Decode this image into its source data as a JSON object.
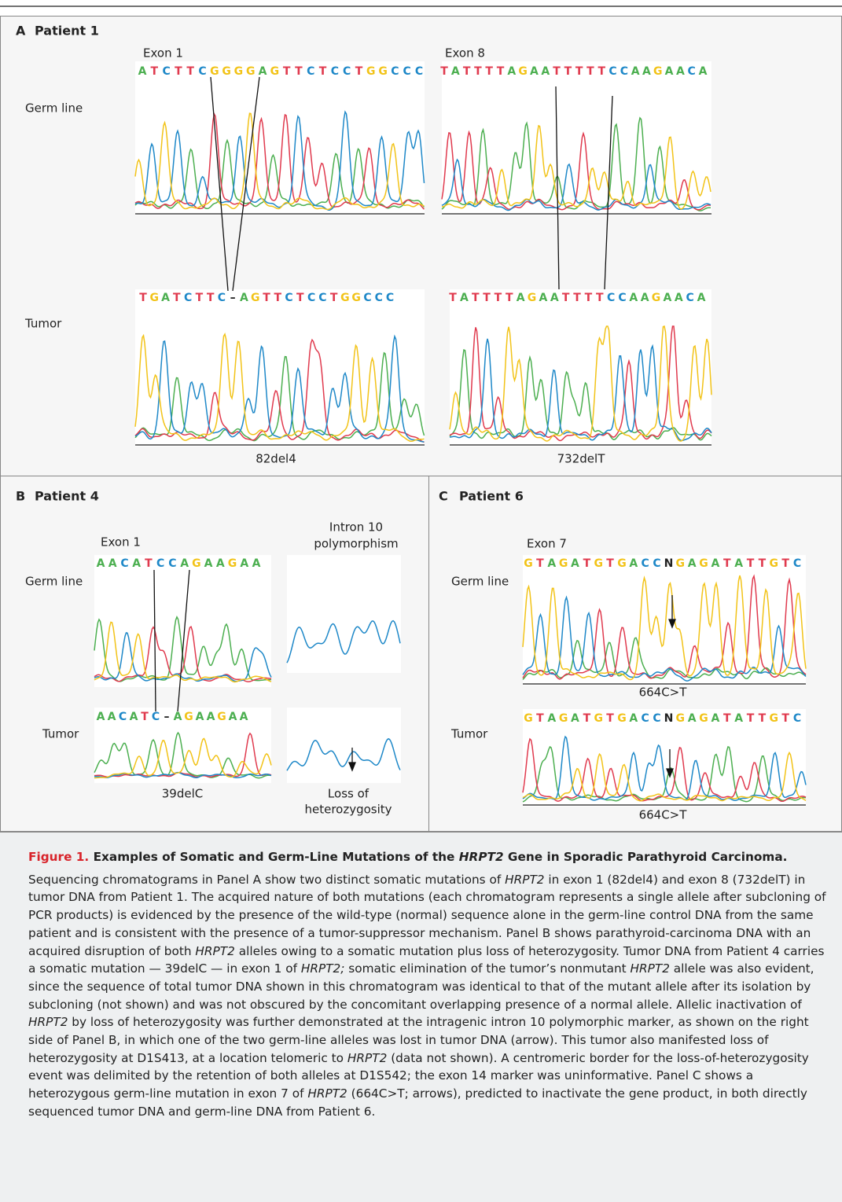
{
  "panels": [
    {
      "letter": "A",
      "title": "Patient 1",
      "row_labels": [
        "Germ line",
        "Tumor"
      ],
      "exons": [
        "Exon 1",
        "Exon 8"
      ],
      "sequences": [
        "ATCTTCGGGGAGTTCTCCTGGCCC",
        "TATTTTAGAATTTTTCCAAGAACA",
        "TGATCTTC–AGTTCTCCTGGCCC",
        "TATTTTAGAATTTTCCAAGAACA"
      ],
      "mutations": [
        "82del4",
        "732delT"
      ]
    },
    {
      "letter": "B",
      "title": "Patient 4",
      "row_labels": [
        "Germ line",
        "Tumor"
      ],
      "exons": [
        "Exon 1"
      ],
      "marker": [
        "Intron 10",
        "polymorphism"
      ],
      "sequences": [
        "AACATCCAGAAGAA",
        "AACATC–AGAAGAA"
      ],
      "mutations": [
        "39delC"
      ],
      "marker_result": [
        "Loss of",
        "heterozygosity"
      ]
    },
    {
      "letter": "C",
      "title": "Patient 6",
      "row_labels": [
        "Germ line",
        "Tumor"
      ],
      "exons": [
        "Exon 7"
      ],
      "sequences": [
        "GTAGATGTGACCNGAGATATTGTC",
        "GTAGATGTGACCNGAGATATTGTC"
      ],
      "mutations": [
        "664C>T",
        "664C>T"
      ]
    }
  ],
  "caption": {
    "label": "Figure 1.",
    "title": [
      {
        "text": "Examples of Somatic and Germ-Line Mutations of the "
      },
      {
        "text": "HRPT2",
        "italic": true
      },
      {
        "text": " Gene in Sporadic Parathyroid Carcinoma."
      }
    ],
    "body": [
      {
        "text": "Sequencing chromatograms in Panel A show two distinct somatic mutations of "
      },
      {
        "text": "HRPT2",
        "italic": true
      },
      {
        "text": " in exon 1 (82del4) and exon 8 (732delT) in tumor DNA from Patient 1. The acquired nature of both mutations (each chromatogram represents a single allele after subcloning of PCR products) is evidenced by the presence of the wild-type (normal) sequence alone in the germ-line control DNA from the same patient and is consistent with the presence of a tumor-suppressor mechanism. Panel B shows parathyroid-carcinoma DNA with an acquired disruption of both "
      },
      {
        "text": "HRPT2",
        "italic": true
      },
      {
        "text": " alleles owing to a somatic mutation plus loss of heterozygosity. Tumor DNA from Patient 4 carries a somatic mutation — 39delC — in exon 1 of "
      },
      {
        "text": "HRPT2;",
        "italic": true
      },
      {
        "text": " somatic elimination of the tumor’s nonmutant "
      },
      {
        "text": "HRPT2",
        "italic": true
      },
      {
        "text": " allele was also evident, since the sequence of total tumor DNA shown in this chromatogram was identical to that of the mutant allele after its isolation by subcloning (not shown) and was not obscured by the concomitant overlapping presence of a normal allele. Allelic inactivation of "
      },
      {
        "text": "HRPT2",
        "italic": true
      },
      {
        "text": " by loss of heterozygosity was further demonstrated at the intragenic intron 10 polymorphic marker, as shown on the right side of Panel B, in which one of the two germ-line alleles was lost in tumor DNA (arrow). This tumor also manifested loss of heterozygosity at D1S413, at a location telomeric to "
      },
      {
        "text": "HRPT2",
        "italic": true
      },
      {
        "text": " (data not shown). A centromeric border for the loss-of-heterozygosity event was delimited by the retention of both alleles at D1S542; the exon 14 marker was uninformative. Panel C shows a heterozygous germ-line mutation in exon 7 of "
      },
      {
        "text": "HRPT2",
        "italic": true
      },
      {
        "text": " (664C>T; arrows), predicted to inactivate the gene product, in both directly sequenced tumor DNA and germ-line DNA from Patient 6."
      }
    ]
  }
}
